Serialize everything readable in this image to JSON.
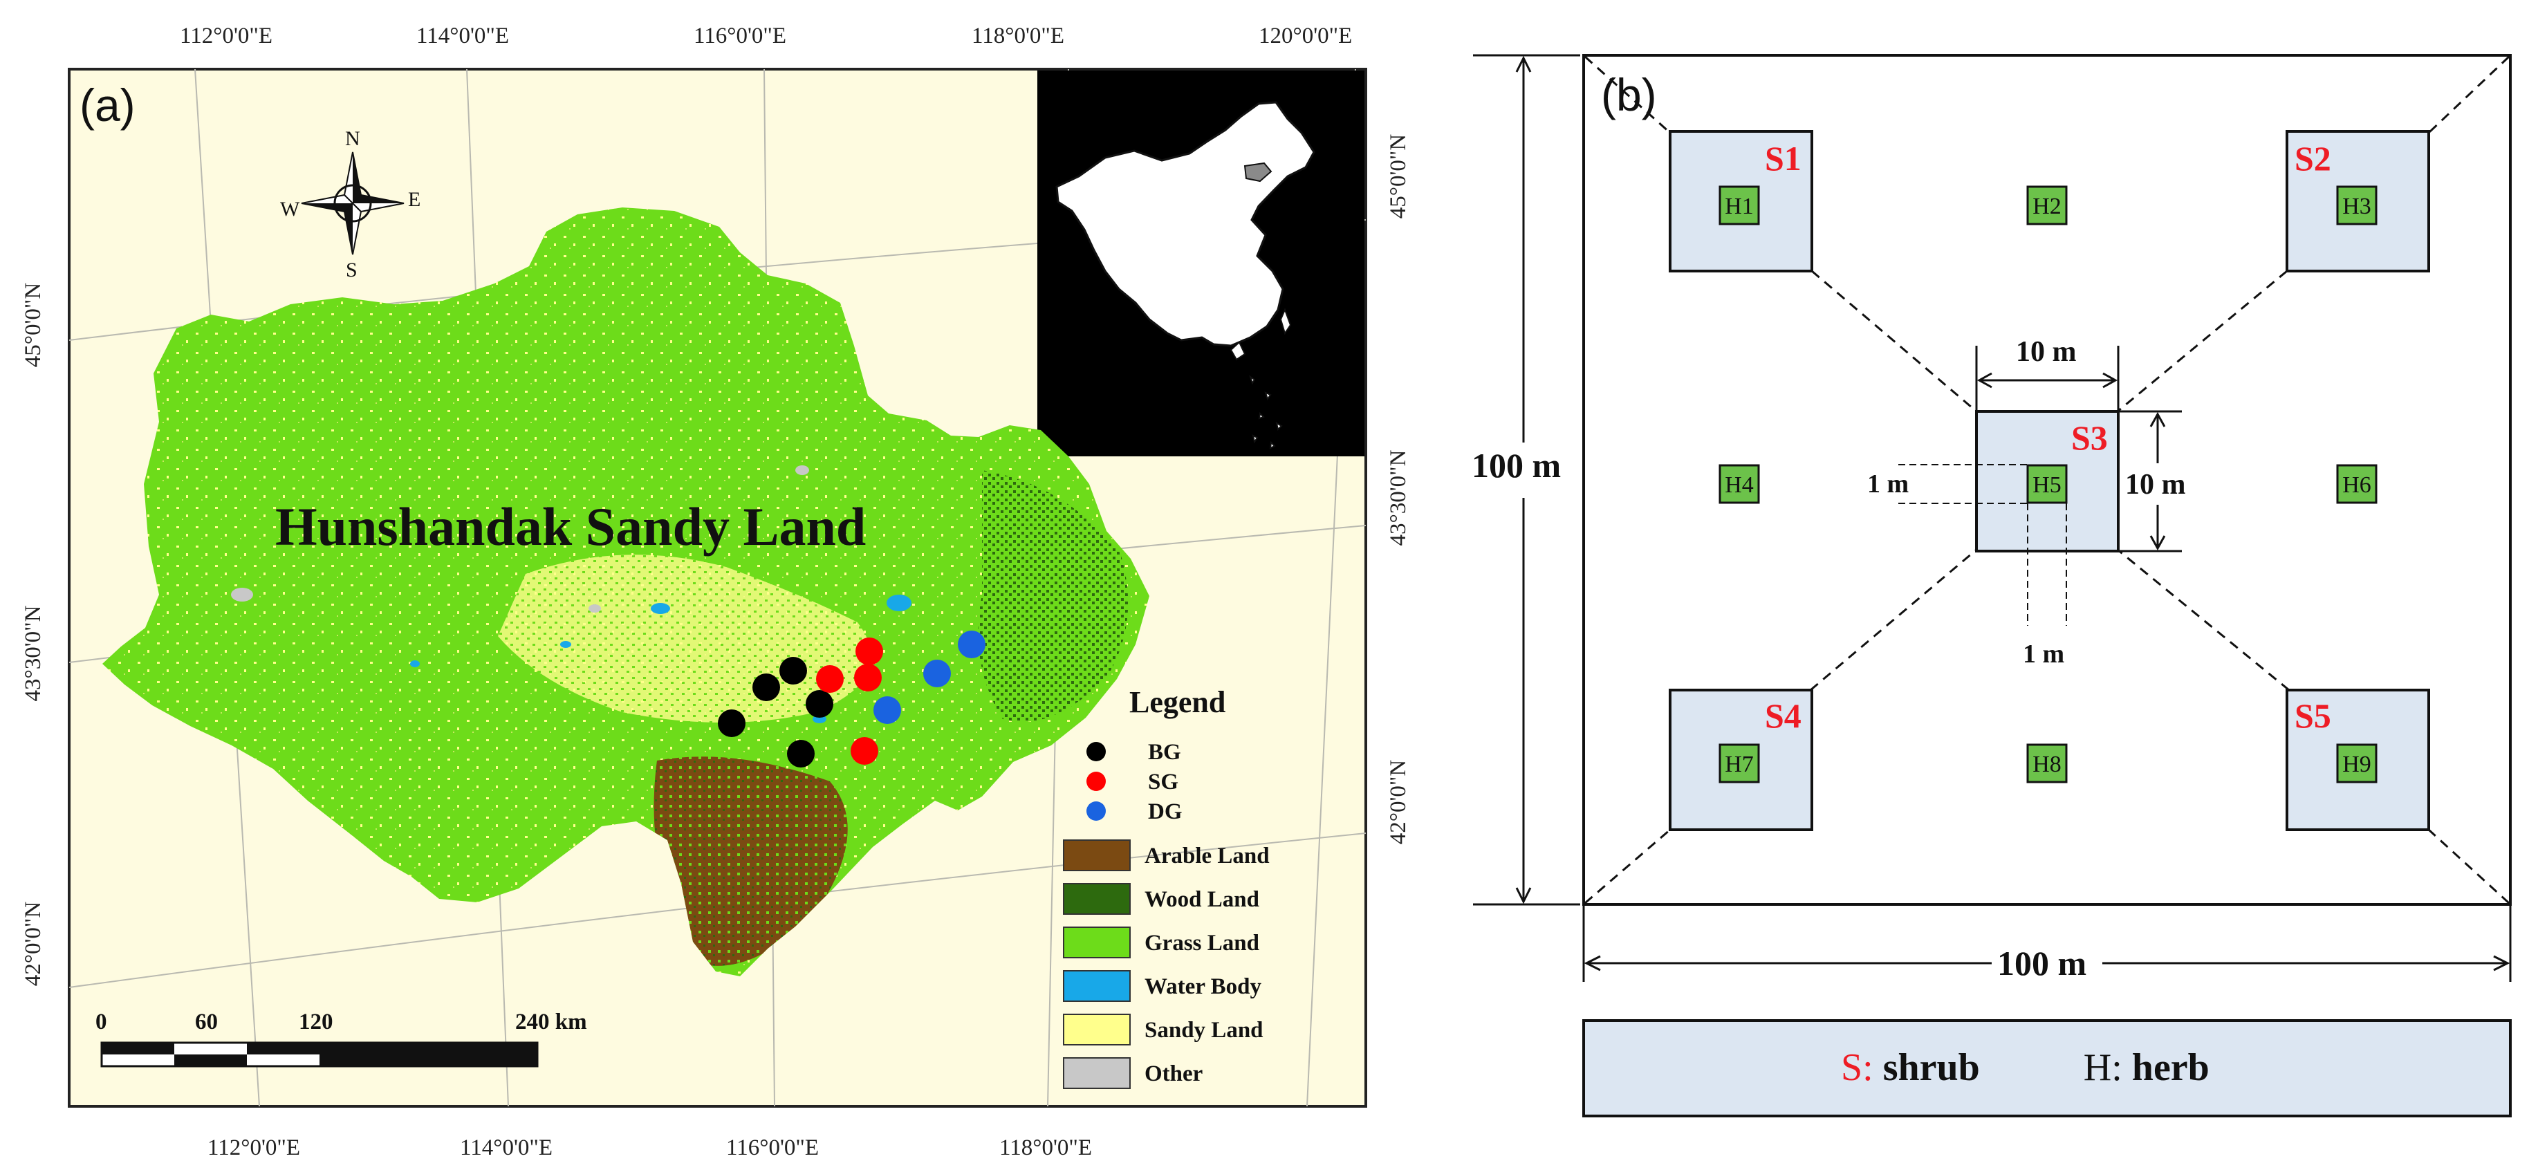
{
  "panel_a": {
    "label": "(a)",
    "top_lon_labels": [
      "112°0'0\"E",
      "114°0'0\"E",
      "116°0'0\"E",
      "118°0'0\"E",
      "120°0'0\"E"
    ],
    "bottom_lon_labels": [
      "112°0'0\"E",
      "114°0'0\"E",
      "116°0'0\"E",
      "118°0'0\"E"
    ],
    "left_lat_labels": [
      "45°0'0\"N",
      "43°30'0\"N",
      "42°0'0\"N"
    ],
    "right_lat_labels": [
      "45°0'0\"N",
      "43°30'0\"N",
      "42°0'0\"N"
    ],
    "compass": {
      "n": "N",
      "s": "S",
      "e": "E",
      "w": "W"
    },
    "map_title": "Hunshandak Sandy Land",
    "scale_bar": {
      "labels": [
        "0",
        "60",
        "120",
        "240 km"
      ]
    },
    "legend": {
      "title": "Legend",
      "points": [
        {
          "label": "BG",
          "color": "#000000"
        },
        {
          "label": "SG",
          "color": "#ff0000"
        },
        {
          "label": "DG",
          "color": "#1a63e0"
        }
      ],
      "land_classes": [
        {
          "label": "Arable Land",
          "color": "#7b4a12"
        },
        {
          "label": "Wood Land",
          "color": "#2d6a0e"
        },
        {
          "label": "Grass Land",
          "color": "#6ddc1a"
        },
        {
          "label": "Water Body",
          "color": "#18a8e8"
        },
        {
          "label": "Sandy Land",
          "color": "#ffff8c"
        },
        {
          "label": "Other",
          "color": "#c8c8c8"
        }
      ]
    },
    "colors": {
      "background": "#fefbe0",
      "inset_bg": "#dedede",
      "grass": "#6ddc1a",
      "sandy": "#ffff8c",
      "arable": "#7b4a12",
      "wood": "#2d6a0e",
      "water": "#18a8e8",
      "other": "#c8c8c8"
    }
  },
  "panel_b": {
    "label": "(b)",
    "shrub_labels": [
      "S1",
      "S2",
      "S3",
      "S4",
      "S5"
    ],
    "herb_labels": [
      "H1",
      "H2",
      "H3",
      "H4",
      "H5",
      "H6",
      "H7",
      "H8",
      "H9"
    ],
    "dim_100m_vertical": "100 m",
    "dim_100m_horizontal": "100 m",
    "dim_10m_top": "10 m",
    "dim_10m_right": "10 m",
    "dim_1m_left": "1 m",
    "dim_1m_bottom": "1 m",
    "legend_s_key": "S:",
    "legend_s_value": "shrub",
    "legend_h_key": "H:",
    "legend_h_value": "herb",
    "colors": {
      "shrub_fill": "#dce6f2",
      "herb_fill": "#6cc24a",
      "red_text": "#ee1c25"
    }
  }
}
